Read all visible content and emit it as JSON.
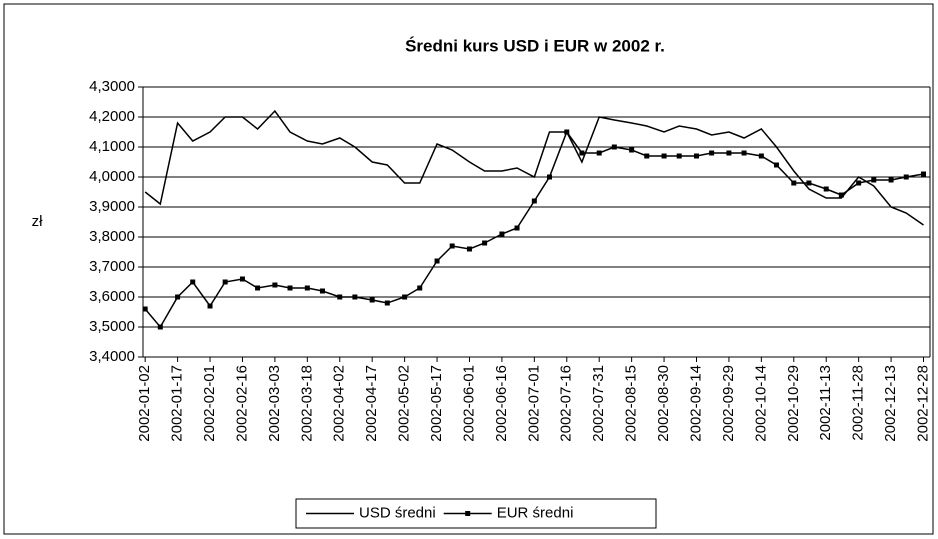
{
  "chart_data": {
    "type": "line",
    "title": "Średni kurs USD i EUR w 2002 r.",
    "y_label": "zł",
    "legend": "bottom",
    "grid": true,
    "x": [
      "2002-01-02",
      "2002-01-09",
      "2002-01-17",
      "2002-01-24",
      "2002-02-01",
      "2002-02-08",
      "2002-02-16",
      "2002-02-23",
      "2002-03-03",
      "2002-03-10",
      "2002-03-18",
      "2002-03-25",
      "2002-04-02",
      "2002-04-09",
      "2002-04-17",
      "2002-04-24",
      "2002-05-02",
      "2002-05-09",
      "2002-05-17",
      "2002-05-24",
      "2002-06-01",
      "2002-06-08",
      "2002-06-16",
      "2002-06-23",
      "2002-07-01",
      "2002-07-08",
      "2002-07-16",
      "2002-07-23",
      "2002-07-31",
      "2002-08-07",
      "2002-08-15",
      "2002-08-22",
      "2002-08-30",
      "2002-09-06",
      "2002-09-14",
      "2002-09-21",
      "2002-09-29",
      "2002-10-06",
      "2002-10-14",
      "2002-10-21",
      "2002-10-29",
      "2002-11-05",
      "2002-11-13",
      "2002-11-20",
      "2002-11-28",
      "2002-12-05",
      "2002-12-13",
      "2002-12-20",
      "2002-12-28"
    ],
    "xlim": [
      "2002-01-01",
      "2002-12-31"
    ],
    "xticks": [
      "2002-01-02",
      "2002-01-17",
      "2002-02-01",
      "2002-02-16",
      "2002-03-03",
      "2002-03-18",
      "2002-04-02",
      "2002-04-17",
      "2002-05-02",
      "2002-05-17",
      "2002-06-01",
      "2002-06-16",
      "2002-07-01",
      "2002-07-16",
      "2002-07-31",
      "2002-08-15",
      "2002-08-30",
      "2002-09-14",
      "2002-09-29",
      "2002-10-14",
      "2002-10-29",
      "2002-11-13",
      "2002-11-28",
      "2002-12-13",
      "2002-12-28"
    ],
    "ylim": [
      3.4,
      4.3
    ],
    "yticks": [
      {
        "value": 3.4,
        "label": "3,4000"
      },
      {
        "value": 3.5,
        "label": "3,5000"
      },
      {
        "value": 3.6,
        "label": "3,6000"
      },
      {
        "value": 3.7,
        "label": "3,7000"
      },
      {
        "value": 3.8,
        "label": "3,8000"
      },
      {
        "value": 3.9,
        "label": "3,9000"
      },
      {
        "value": 4.0,
        "label": "4,0000"
      },
      {
        "value": 4.1,
        "label": "4,1000"
      },
      {
        "value": 4.2,
        "label": "4,2000"
      },
      {
        "value": 4.3,
        "label": "4,3000"
      }
    ],
    "series": [
      {
        "name": "USD średni",
        "color": "#000000",
        "marker": false,
        "values": [
          3.95,
          3.91,
          4.18,
          4.12,
          4.15,
          4.2,
          4.2,
          4.16,
          4.22,
          4.15,
          4.12,
          4.11,
          4.13,
          4.1,
          4.05,
          4.04,
          3.98,
          3.98,
          4.11,
          4.09,
          4.05,
          4.02,
          4.02,
          4.03,
          4.0,
          4.15,
          4.15,
          4.05,
          4.2,
          4.19,
          4.18,
          4.17,
          4.15,
          4.17,
          4.16,
          4.14,
          4.15,
          4.13,
          4.16,
          4.1,
          4.02,
          3.96,
          3.93,
          3.93,
          4.0,
          3.97,
          3.9,
          3.88,
          3.84
        ]
      },
      {
        "name": "EUR średni",
        "color": "#000000",
        "marker": true,
        "values": [
          3.56,
          3.5,
          3.6,
          3.65,
          3.57,
          3.65,
          3.66,
          3.63,
          3.64,
          3.63,
          3.63,
          3.62,
          3.6,
          3.6,
          3.59,
          3.58,
          3.6,
          3.63,
          3.72,
          3.77,
          3.76,
          3.78,
          3.81,
          3.83,
          3.92,
          4.0,
          4.15,
          4.08,
          4.08,
          4.1,
          4.09,
          4.07,
          4.07,
          4.07,
          4.07,
          4.08,
          4.08,
          4.08,
          4.07,
          4.04,
          3.98,
          3.98,
          3.96,
          3.94,
          3.98,
          3.99,
          3.99,
          4.0,
          4.01
        ]
      }
    ]
  }
}
